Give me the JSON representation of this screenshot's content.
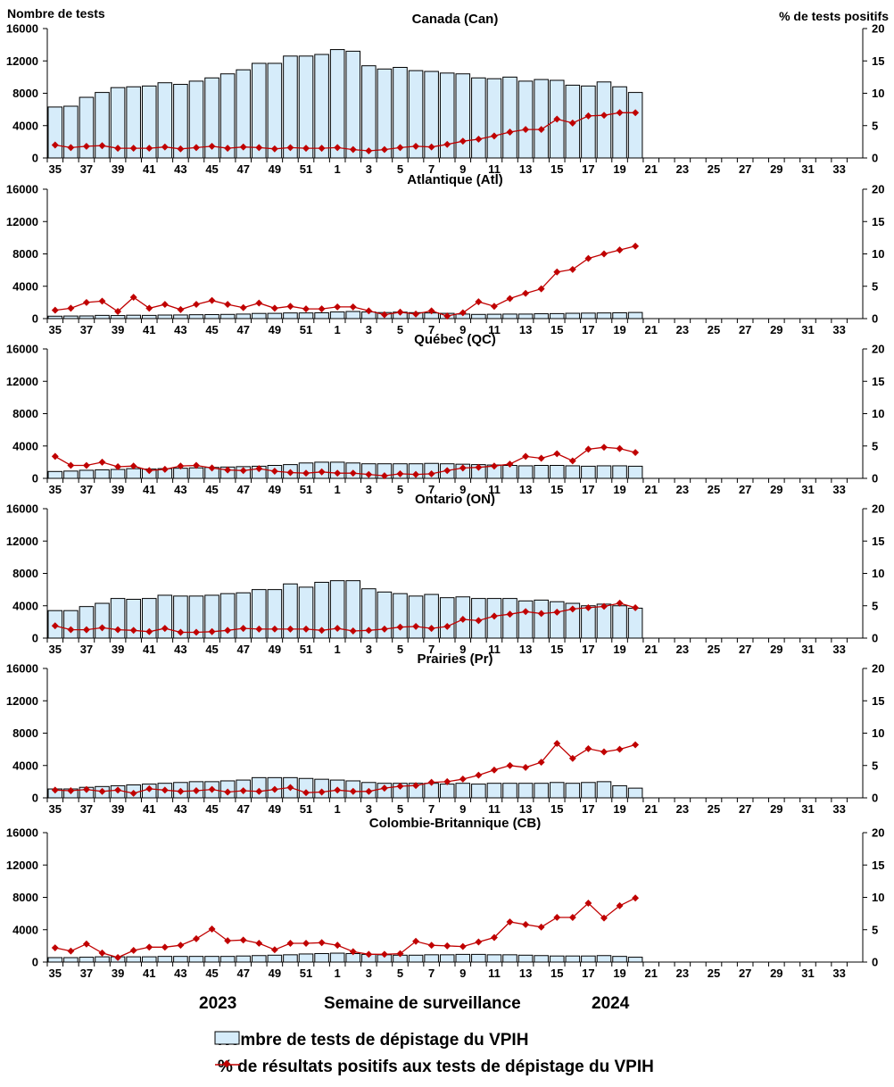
{
  "figure": {
    "left_axis_title": "Nombre de tests",
    "right_axis_title": "% de tests positifs",
    "xlabel": "Semaine de surveillance",
    "year_start": "2023",
    "year_end": "2024",
    "bar_color": "#d6ecfa",
    "bar_stroke": "#000000",
    "line_color": "#c00000",
    "legend": {
      "bars": "Nombre de tests de dépistage du VPIH",
      "line": "% de résultats positifs aux tests de dépistage du VPIH"
    }
  },
  "chart_data": [
    {
      "type": "bar",
      "title": "Canada (Can)",
      "weeks": [
        "35",
        "36",
        "37",
        "38",
        "39",
        "40",
        "41",
        "42",
        "43",
        "44",
        "45",
        "46",
        "47",
        "48",
        "49",
        "50",
        "51",
        "52",
        "1",
        "2",
        "3",
        "4",
        "5",
        "6",
        "7",
        "8",
        "9",
        "10",
        "11",
        "12",
        "13",
        "14",
        "15",
        "16",
        "17",
        "18",
        "19",
        "20",
        "21",
        "22",
        "23",
        "24",
        "25",
        "26",
        "27",
        "28",
        "29",
        "30",
        "31",
        "32",
        "33",
        "34"
      ],
      "x_tick_labels": [
        "35",
        "37",
        "39",
        "41",
        "43",
        "45",
        "47",
        "49",
        "51",
        "1",
        "3",
        "5",
        "7",
        "9",
        "11",
        "13",
        "15",
        "17",
        "19",
        "21",
        "23",
        "25",
        "27",
        "29",
        "31",
        "33"
      ],
      "left_axis": {
        "min": 0,
        "max": 16000,
        "ticks": [
          "0",
          "4000",
          "8000",
          "12000",
          "16000"
        ]
      },
      "right_axis": {
        "min": 0,
        "max": 20,
        "ticks": [
          "0",
          "5",
          "10",
          "15",
          "20"
        ]
      },
      "series": [
        {
          "name": "Nombre de tests de dépistage du VPIH",
          "axis": "left",
          "values": [
            6300,
            6400,
            7500,
            8100,
            8700,
            8800,
            8900,
            9300,
            9100,
            9500,
            9900,
            10400,
            10900,
            11700,
            11700,
            12600,
            12600,
            12800,
            13400,
            13200,
            11400,
            11000,
            11200,
            10800,
            10700,
            10500,
            10400,
            9900,
            9800,
            10000,
            9500,
            9700,
            9600,
            9000,
            8900,
            9400,
            8800,
            8100
          ]
        },
        {
          "name": "% de résultats positifs aux tests de dépistage du VPIH",
          "axis": "right",
          "values": [
            2.0,
            1.6,
            1.8,
            1.9,
            1.5,
            1.5,
            1.5,
            1.7,
            1.4,
            1.6,
            1.8,
            1.5,
            1.7,
            1.6,
            1.4,
            1.6,
            1.5,
            1.5,
            1.6,
            1.3,
            1.1,
            1.3,
            1.6,
            1.8,
            1.7,
            2.1,
            2.6,
            2.9,
            3.4,
            4.0,
            4.4,
            4.4,
            6.0,
            5.4,
            6.5,
            6.6,
            7.0,
            7.0
          ]
        }
      ]
    },
    {
      "type": "bar",
      "title": "Atlantique (Atl)",
      "weeks": [
        "35",
        "36",
        "37",
        "38",
        "39",
        "40",
        "41",
        "42",
        "43",
        "44",
        "45",
        "46",
        "47",
        "48",
        "49",
        "50",
        "51",
        "52",
        "1",
        "2",
        "3",
        "4",
        "5",
        "6",
        "7",
        "8",
        "9",
        "10",
        "11",
        "12",
        "13",
        "14",
        "15",
        "16",
        "17",
        "18",
        "19",
        "20",
        "21",
        "22",
        "23",
        "24",
        "25",
        "26",
        "27",
        "28",
        "29",
        "30",
        "31",
        "32",
        "33",
        "34"
      ],
      "x_tick_labels": [
        "35",
        "37",
        "39",
        "41",
        "43",
        "45",
        "47",
        "49",
        "51",
        "1",
        "3",
        "5",
        "7",
        "9",
        "11",
        "13",
        "15",
        "17",
        "19",
        "21",
        "23",
        "25",
        "27",
        "29",
        "31",
        "33"
      ],
      "left_axis": {
        "min": 0,
        "max": 16000,
        "ticks": [
          "0",
          "4000",
          "8000",
          "12000",
          "16000"
        ]
      },
      "right_axis": {
        "min": 0,
        "max": 20,
        "ticks": [
          "0",
          "5",
          "10",
          "15",
          "20"
        ]
      },
      "series": [
        {
          "name": "Nombre de tests de dépistage du VPIH",
          "axis": "left",
          "values": [
            300,
            320,
            330,
            400,
            380,
            420,
            400,
            440,
            450,
            480,
            500,
            520,
            560,
            640,
            650,
            700,
            700,
            720,
            820,
            880,
            820,
            750,
            800,
            740,
            700,
            650,
            560,
            520,
            540,
            560,
            560,
            600,
            620,
            660,
            680,
            700,
            720,
            760
          ]
        },
        {
          "name": "% de résultats positifs aux tests de dépistage du VPIH",
          "axis": "right",
          "values": [
            1.3,
            1.6,
            2.5,
            2.7,
            1.1,
            3.3,
            1.6,
            2.2,
            1.4,
            2.2,
            2.8,
            2.2,
            1.7,
            2.4,
            1.6,
            1.9,
            1.5,
            1.5,
            1.8,
            1.8,
            1.2,
            0.6,
            1.0,
            0.7,
            1.2,
            0.4,
            0.9,
            2.6,
            1.9,
            3.1,
            3.9,
            4.6,
            7.2,
            7.6,
            9.3,
            10.0,
            10.6,
            11.2
          ]
        }
      ]
    },
    {
      "type": "bar",
      "title": "Québec (QC)",
      "weeks": [
        "35",
        "36",
        "37",
        "38",
        "39",
        "40",
        "41",
        "42",
        "43",
        "44",
        "45",
        "46",
        "47",
        "48",
        "49",
        "50",
        "51",
        "52",
        "1",
        "2",
        "3",
        "4",
        "5",
        "6",
        "7",
        "8",
        "9",
        "10",
        "11",
        "12",
        "13",
        "14",
        "15",
        "16",
        "17",
        "18",
        "19",
        "20",
        "21",
        "22",
        "23",
        "24",
        "25",
        "26",
        "27",
        "28",
        "29",
        "30",
        "31",
        "32",
        "33",
        "34"
      ],
      "x_tick_labels": [
        "35",
        "37",
        "39",
        "41",
        "43",
        "45",
        "47",
        "49",
        "51",
        "1",
        "3",
        "5",
        "7",
        "9",
        "11",
        "13",
        "15",
        "17",
        "19",
        "21",
        "23",
        "25",
        "27",
        "29",
        "31",
        "33"
      ],
      "left_axis": {
        "min": 0,
        "max": 16000,
        "ticks": [
          "0",
          "4000",
          "8000",
          "12000",
          "16000"
        ]
      },
      "right_axis": {
        "min": 0,
        "max": 20,
        "ticks": [
          "0",
          "5",
          "10",
          "15",
          "20"
        ]
      },
      "series": [
        {
          "name": "Nombre de tests de dépistage du VPIH",
          "axis": "left",
          "values": [
            850,
            900,
            1000,
            1050,
            1100,
            1200,
            1150,
            1200,
            1250,
            1300,
            1350,
            1400,
            1450,
            1500,
            1600,
            1700,
            1900,
            2000,
            2000,
            1900,
            1800,
            1800,
            1800,
            1800,
            1850,
            1800,
            1750,
            1700,
            1650,
            1600,
            1550,
            1600,
            1600,
            1550,
            1500,
            1550,
            1550,
            1500
          ]
        },
        {
          "name": "% de résultats positifs aux tests de dépistage du VPIH",
          "axis": "right",
          "values": [
            3.4,
            2.0,
            2.0,
            2.5,
            1.8,
            1.9,
            1.2,
            1.4,
            1.9,
            2.0,
            1.6,
            1.3,
            1.2,
            1.5,
            1.1,
            0.9,
            0.8,
            1.0,
            0.8,
            0.8,
            0.6,
            0.4,
            0.7,
            0.6,
            0.7,
            1.2,
            1.6,
            1.7,
            1.9,
            2.2,
            3.4,
            3.1,
            3.8,
            2.7,
            4.5,
            4.8,
            4.6,
            4.0
          ]
        }
      ]
    },
    {
      "type": "bar",
      "title": "Ontario (ON)",
      "weeks": [
        "35",
        "36",
        "37",
        "38",
        "39",
        "40",
        "41",
        "42",
        "43",
        "44",
        "45",
        "46",
        "47",
        "48",
        "49",
        "50",
        "51",
        "52",
        "1",
        "2",
        "3",
        "4",
        "5",
        "6",
        "7",
        "8",
        "9",
        "10",
        "11",
        "12",
        "13",
        "14",
        "15",
        "16",
        "17",
        "18",
        "19",
        "20",
        "21",
        "22",
        "23",
        "24",
        "25",
        "26",
        "27",
        "28",
        "29",
        "30",
        "31",
        "32",
        "33",
        "34"
      ],
      "x_tick_labels": [
        "35",
        "37",
        "39",
        "41",
        "43",
        "45",
        "47",
        "49",
        "51",
        "1",
        "3",
        "5",
        "7",
        "9",
        "11",
        "13",
        "15",
        "17",
        "19",
        "21",
        "23",
        "25",
        "27",
        "29",
        "31",
        "33"
      ],
      "left_axis": {
        "min": 0,
        "max": 16000,
        "ticks": [
          "0",
          "4000",
          "8000",
          "12000",
          "16000"
        ]
      },
      "right_axis": {
        "min": 0,
        "max": 20,
        "ticks": [
          "0",
          "5",
          "10",
          "15",
          "20"
        ]
      },
      "series": [
        {
          "name": "Nombre de tests de dépistage du VPIH",
          "axis": "left",
          "values": [
            3400,
            3400,
            3900,
            4300,
            4900,
            4800,
            4900,
            5300,
            5200,
            5200,
            5300,
            5500,
            5600,
            6000,
            6000,
            6700,
            6300,
            6900,
            7100,
            7100,
            6100,
            5700,
            5500,
            5200,
            5400,
            5000,
            5100,
            4900,
            4900,
            4900,
            4600,
            4700,
            4500,
            4300,
            4000,
            4200,
            4000,
            3700
          ]
        },
        {
          "name": "% de résultats positifs aux tests de dépistage du VPIH",
          "axis": "right",
          "values": [
            1.9,
            1.3,
            1.3,
            1.6,
            1.3,
            1.2,
            1.0,
            1.5,
            0.9,
            0.9,
            1.0,
            1.2,
            1.5,
            1.4,
            1.4,
            1.4,
            1.4,
            1.2,
            1.5,
            1.1,
            1.2,
            1.4,
            1.7,
            1.8,
            1.5,
            1.8,
            2.9,
            2.7,
            3.4,
            3.7,
            4.1,
            3.8,
            4.0,
            4.5,
            4.7,
            4.9,
            5.4,
            4.7
          ]
        }
      ]
    },
    {
      "type": "bar",
      "title": "Prairies (Pr)",
      "weeks": [
        "35",
        "36",
        "37",
        "38",
        "39",
        "40",
        "41",
        "42",
        "43",
        "44",
        "45",
        "46",
        "47",
        "48",
        "49",
        "50",
        "51",
        "52",
        "1",
        "2",
        "3",
        "4",
        "5",
        "6",
        "7",
        "8",
        "9",
        "10",
        "11",
        "12",
        "13",
        "14",
        "15",
        "16",
        "17",
        "18",
        "19",
        "20",
        "21",
        "22",
        "23",
        "24",
        "25",
        "26",
        "27",
        "28",
        "29",
        "30",
        "31",
        "32",
        "33",
        "34"
      ],
      "x_tick_labels": [
        "35",
        "37",
        "39",
        "41",
        "43",
        "45",
        "47",
        "49",
        "51",
        "1",
        "3",
        "5",
        "7",
        "9",
        "11",
        "13",
        "15",
        "17",
        "19",
        "21",
        "23",
        "25",
        "27",
        "29",
        "31",
        "33"
      ],
      "left_axis": {
        "min": 0,
        "max": 16000,
        "ticks": [
          "0",
          "4000",
          "8000",
          "12000",
          "16000"
        ]
      },
      "right_axis": {
        "min": 0,
        "max": 20,
        "ticks": [
          "0",
          "5",
          "10",
          "15",
          "20"
        ]
      },
      "series": [
        {
          "name": "Nombre de tests de dépistage du VPIH",
          "axis": "left",
          "values": [
            1100,
            1100,
            1300,
            1400,
            1500,
            1600,
            1700,
            1800,
            1900,
            2000,
            2000,
            2100,
            2200,
            2500,
            2500,
            2500,
            2400,
            2300,
            2200,
            2100,
            1900,
            1800,
            1800,
            1800,
            1800,
            1700,
            1800,
            1700,
            1800,
            1800,
            1800,
            1800,
            1900,
            1800,
            1900,
            2000,
            1500,
            1200
          ]
        },
        {
          "name": "% de résultats positifs aux tests de dépistage du VPIH",
          "axis": "right",
          "values": [
            1.2,
            1.1,
            1.3,
            1.0,
            1.2,
            0.7,
            1.4,
            1.2,
            1.0,
            1.1,
            1.3,
            0.9,
            1.1,
            1.0,
            1.3,
            1.6,
            0.8,
            0.9,
            1.2,
            1.0,
            1.0,
            1.5,
            1.8,
            1.9,
            2.4,
            2.5,
            2.9,
            3.5,
            4.3,
            5.0,
            4.7,
            5.5,
            8.4,
            6.1,
            7.6,
            7.1,
            7.5,
            8.2
          ]
        }
      ]
    },
    {
      "type": "bar",
      "title": "Colombie-Britannique (CB)",
      "weeks": [
        "35",
        "36",
        "37",
        "38",
        "39",
        "40",
        "41",
        "42",
        "43",
        "44",
        "45",
        "46",
        "47",
        "48",
        "49",
        "50",
        "51",
        "52",
        "1",
        "2",
        "3",
        "4",
        "5",
        "6",
        "7",
        "8",
        "9",
        "10",
        "11",
        "12",
        "13",
        "14",
        "15",
        "16",
        "17",
        "18",
        "19",
        "20",
        "21",
        "22",
        "23",
        "24",
        "25",
        "26",
        "27",
        "28",
        "29",
        "30",
        "31",
        "32",
        "33",
        "34"
      ],
      "x_tick_labels": [
        "35",
        "37",
        "39",
        "41",
        "43",
        "45",
        "47",
        "49",
        "51",
        "1",
        "3",
        "5",
        "7",
        "9",
        "11",
        "13",
        "15",
        "17",
        "19",
        "21",
        "23",
        "25",
        "27",
        "29",
        "31",
        "33"
      ],
      "left_axis": {
        "min": 0,
        "max": 16000,
        "ticks": [
          "0",
          "4000",
          "8000",
          "12000",
          "16000"
        ]
      },
      "right_axis": {
        "min": 0,
        "max": 20,
        "ticks": [
          "0",
          "5",
          "10",
          "15",
          "20"
        ]
      },
      "series": [
        {
          "name": "Nombre de tests de dépistage du VPIH",
          "axis": "left",
          "values": [
            550,
            550,
            600,
            650,
            650,
            650,
            650,
            700,
            700,
            700,
            700,
            700,
            750,
            800,
            850,
            900,
            1000,
            1050,
            1100,
            1050,
            950,
            900,
            850,
            850,
            900,
            900,
            950,
            950,
            900,
            900,
            850,
            800,
            750,
            750,
            750,
            800,
            700,
            600
          ]
        },
        {
          "name": "% de résultats positifs aux tests de dépistage du VPIH",
          "axis": "right",
          "values": [
            2.2,
            1.7,
            2.8,
            1.4,
            0.7,
            1.8,
            2.3,
            2.3,
            2.6,
            3.6,
            5.1,
            3.3,
            3.4,
            2.9,
            1.9,
            2.9,
            2.9,
            3.0,
            2.6,
            1.6,
            1.2,
            1.2,
            1.3,
            3.2,
            2.6,
            2.5,
            2.4,
            3.1,
            3.8,
            6.2,
            5.8,
            5.4,
            6.9,
            6.9,
            9.1,
            6.8,
            8.7,
            9.9
          ]
        }
      ]
    }
  ]
}
